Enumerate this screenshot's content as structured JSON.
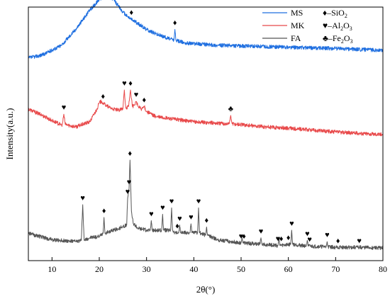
{
  "chart_data": {
    "type": "line",
    "xlabel": "2θ(°)",
    "ylabel": "Intensity(a.u.)",
    "xlim": [
      5,
      80
    ],
    "xticks": [
      10,
      20,
      30,
      40,
      50,
      60,
      70,
      80
    ],
    "grid": false,
    "y_ticks_shown": false,
    "series": [
      {
        "name": "MS",
        "color": "#1f6fe0",
        "offset": 320,
        "points": [
          [
            5,
            -20
          ],
          [
            8,
            -15
          ],
          [
            12,
            0
          ],
          [
            15,
            25
          ],
          [
            18,
            55
          ],
          [
            20,
            72
          ],
          [
            21,
            77
          ],
          [
            22,
            78
          ],
          [
            23,
            72
          ],
          [
            24,
            62
          ],
          [
            25,
            52
          ],
          [
            26,
            45
          ],
          [
            28,
            35
          ],
          [
            30,
            25
          ],
          [
            32,
            18
          ],
          [
            35,
            10
          ],
          [
            35.8,
            8
          ],
          [
            36.0,
            25
          ],
          [
            36.2,
            8
          ],
          [
            38,
            4
          ],
          [
            45,
            0
          ],
          [
            60,
            -3
          ],
          [
            70,
            -5
          ],
          [
            80,
            -8
          ]
        ]
      },
      {
        "name": "MK",
        "color": "#e8494a",
        "offset": 190,
        "points": [
          [
            5,
            30
          ],
          [
            8,
            20
          ],
          [
            10,
            12
          ],
          [
            12,
            5
          ],
          [
            12.2,
            6
          ],
          [
            12.5,
            22
          ],
          [
            12.8,
            6
          ],
          [
            15,
            2
          ],
          [
            18,
            10
          ],
          [
            19.5,
            30
          ],
          [
            20,
            40
          ],
          [
            20.5,
            42
          ],
          [
            21,
            38
          ],
          [
            22,
            33
          ],
          [
            23,
            30
          ],
          [
            24,
            28
          ],
          [
            25,
            30
          ],
          [
            25.3,
            60
          ],
          [
            25.6,
            32
          ],
          [
            26.2,
            34
          ],
          [
            26.6,
            60
          ],
          [
            27,
            34
          ],
          [
            27.4,
            36
          ],
          [
            27.8,
            42
          ],
          [
            28.2,
            34
          ],
          [
            29,
            30
          ],
          [
            29.5,
            34
          ],
          [
            30,
            26
          ],
          [
            32,
            18
          ],
          [
            35,
            15
          ],
          [
            40,
            10
          ],
          [
            47,
            7
          ],
          [
            47.5,
            7
          ],
          [
            47.8,
            20
          ],
          [
            48.1,
            7
          ],
          [
            55,
            2
          ],
          [
            60,
            0
          ],
          [
            65,
            -3
          ],
          [
            70,
            -6
          ],
          [
            75,
            -8
          ],
          [
            80,
            -10
          ]
        ]
      },
      {
        "name": "FA",
        "color": "#555555",
        "offset": 0,
        "points": [
          [
            5,
            25
          ],
          [
            10,
            15
          ],
          [
            15,
            12
          ],
          [
            16.2,
            14
          ],
          [
            16.5,
            70
          ],
          [
            16.8,
            14
          ],
          [
            18,
            18
          ],
          [
            20,
            20
          ],
          [
            20.8,
            25
          ],
          [
            21,
            50
          ],
          [
            21.2,
            25
          ],
          [
            22,
            28
          ],
          [
            24,
            32
          ],
          [
            25,
            36
          ],
          [
            25.8,
            38
          ],
          [
            26,
            80
          ],
          [
            26.3,
            95
          ],
          [
            26.5,
            140
          ],
          [
            26.8,
            60
          ],
          [
            27.2,
            40
          ],
          [
            28,
            34
          ],
          [
            30,
            30
          ],
          [
            30.8,
            30
          ],
          [
            31,
            45
          ],
          [
            31.2,
            30
          ],
          [
            33.2,
            30
          ],
          [
            33.4,
            55
          ],
          [
            33.6,
            30
          ],
          [
            35.1,
            30
          ],
          [
            35.3,
            65
          ],
          [
            35.5,
            30
          ],
          [
            36,
            26
          ],
          [
            36.8,
            26
          ],
          [
            37,
            38
          ],
          [
            37.2,
            26
          ],
          [
            39.2,
            26
          ],
          [
            39.4,
            40
          ],
          [
            39.6,
            26
          ],
          [
            40.8,
            26
          ],
          [
            41,
            65
          ],
          [
            41.2,
            26
          ],
          [
            42.5,
            22
          ],
          [
            42.7,
            35
          ],
          [
            42.9,
            22
          ],
          [
            45,
            15
          ],
          [
            50,
            10
          ],
          [
            50.2,
            18
          ],
          [
            50.4,
            10
          ],
          [
            54,
            8
          ],
          [
            54.2,
            18
          ],
          [
            54.4,
            8
          ],
          [
            57.8,
            6
          ],
          [
            58,
            18
          ],
          [
            58.2,
            6
          ],
          [
            60.5,
            8
          ],
          [
            60.7,
            30
          ],
          [
            60.9,
            8
          ],
          [
            63.8,
            5
          ],
          [
            64,
            14
          ],
          [
            64.2,
            5
          ],
          [
            68,
            4
          ],
          [
            68.2,
            12
          ],
          [
            68.4,
            4
          ],
          [
            70,
            3
          ],
          [
            75,
            3
          ],
          [
            80,
            2
          ]
        ]
      }
    ],
    "legend": {
      "position": "top-right",
      "series_entries": [
        {
          "name": "MS",
          "color": "#1f6fe0"
        },
        {
          "name": "MK",
          "color": "#e8494a"
        },
        {
          "name": "FA",
          "color": "#555555"
        }
      ],
      "symbol_entries": [
        {
          "symbol": "♦",
          "text": "–SiO",
          "sub": "2"
        },
        {
          "symbol": "♥",
          "text": "–Al",
          "sub": "2",
          "text2": "O",
          "sub2": "3"
        },
        {
          "symbol": "♣",
          "text": "–Fe",
          "sub": "2",
          "text2": "O",
          "sub2": "3"
        }
      ]
    },
    "markers": [
      {
        "series": "MS",
        "x": 26.8,
        "symbol": "♦"
      },
      {
        "series": "MS",
        "x": 36.0,
        "symbol": "♦"
      },
      {
        "series": "MK",
        "x": 12.5,
        "symbol": "♥"
      },
      {
        "series": "MK",
        "x": 20.8,
        "symbol": "♦"
      },
      {
        "series": "MK",
        "x": 25.3,
        "symbol": "♥"
      },
      {
        "series": "MK",
        "x": 26.6,
        "symbol": "♦"
      },
      {
        "series": "MK",
        "x": 27.8,
        "symbol": "♥"
      },
      {
        "series": "MK",
        "x": 29.5,
        "symbol": "♦"
      },
      {
        "series": "MK",
        "x": 47.8,
        "symbol": "♣"
      },
      {
        "series": "FA",
        "x": 16.5,
        "symbol": "♥"
      },
      {
        "series": "FA",
        "x": 21.0,
        "symbol": "♦"
      },
      {
        "series": "FA",
        "x": 26.0,
        "symbol": "♥"
      },
      {
        "series": "FA",
        "x": 26.3,
        "symbol": "♥"
      },
      {
        "series": "FA",
        "x": 26.5,
        "symbol": "♦"
      },
      {
        "series": "FA",
        "x": 31.0,
        "symbol": "♥"
      },
      {
        "series": "FA",
        "x": 33.4,
        "symbol": "♥"
      },
      {
        "series": "FA",
        "x": 35.3,
        "symbol": "♥"
      },
      {
        "series": "FA",
        "x": 36.5,
        "symbol": "♦"
      },
      {
        "series": "FA",
        "x": 37.0,
        "symbol": "♥"
      },
      {
        "series": "FA",
        "x": 39.4,
        "symbol": "♥"
      },
      {
        "series": "FA",
        "x": 41.0,
        "symbol": "♥"
      },
      {
        "series": "FA",
        "x": 42.7,
        "symbol": "♦"
      },
      {
        "series": "FA",
        "x": 50.0,
        "symbol": "♥"
      },
      {
        "series": "FA",
        "x": 50.6,
        "symbol": "♦"
      },
      {
        "series": "FA",
        "x": 54.2,
        "symbol": "♥"
      },
      {
        "series": "FA",
        "x": 57.8,
        "symbol": "♥"
      },
      {
        "series": "FA",
        "x": 58.5,
        "symbol": "♦"
      },
      {
        "series": "FA",
        "x": 60.0,
        "symbol": "♦"
      },
      {
        "series": "FA",
        "x": 60.7,
        "symbol": "♥"
      },
      {
        "series": "FA",
        "x": 64.0,
        "symbol": "♥"
      },
      {
        "series": "FA",
        "x": 64.5,
        "symbol": "♥"
      },
      {
        "series": "FA",
        "x": 68.2,
        "symbol": "♥"
      },
      {
        "series": "FA",
        "x": 70.5,
        "symbol": "♦"
      },
      {
        "series": "FA",
        "x": 75.0,
        "symbol": "♥"
      }
    ]
  }
}
